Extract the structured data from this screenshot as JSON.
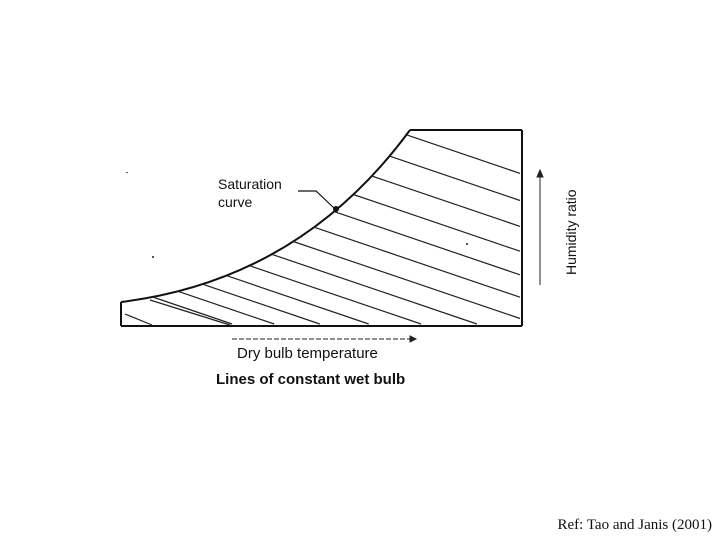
{
  "diagram": {
    "saturation_label_line1": "Saturation",
    "saturation_label_line2": "curve",
    "x_axis_label": "Dry bulb temperature",
    "y_axis_label": "Humidity ratio",
    "caption": "Lines of constant wet bulb"
  },
  "reference": "Ref: Tao and Janis (2001)"
}
